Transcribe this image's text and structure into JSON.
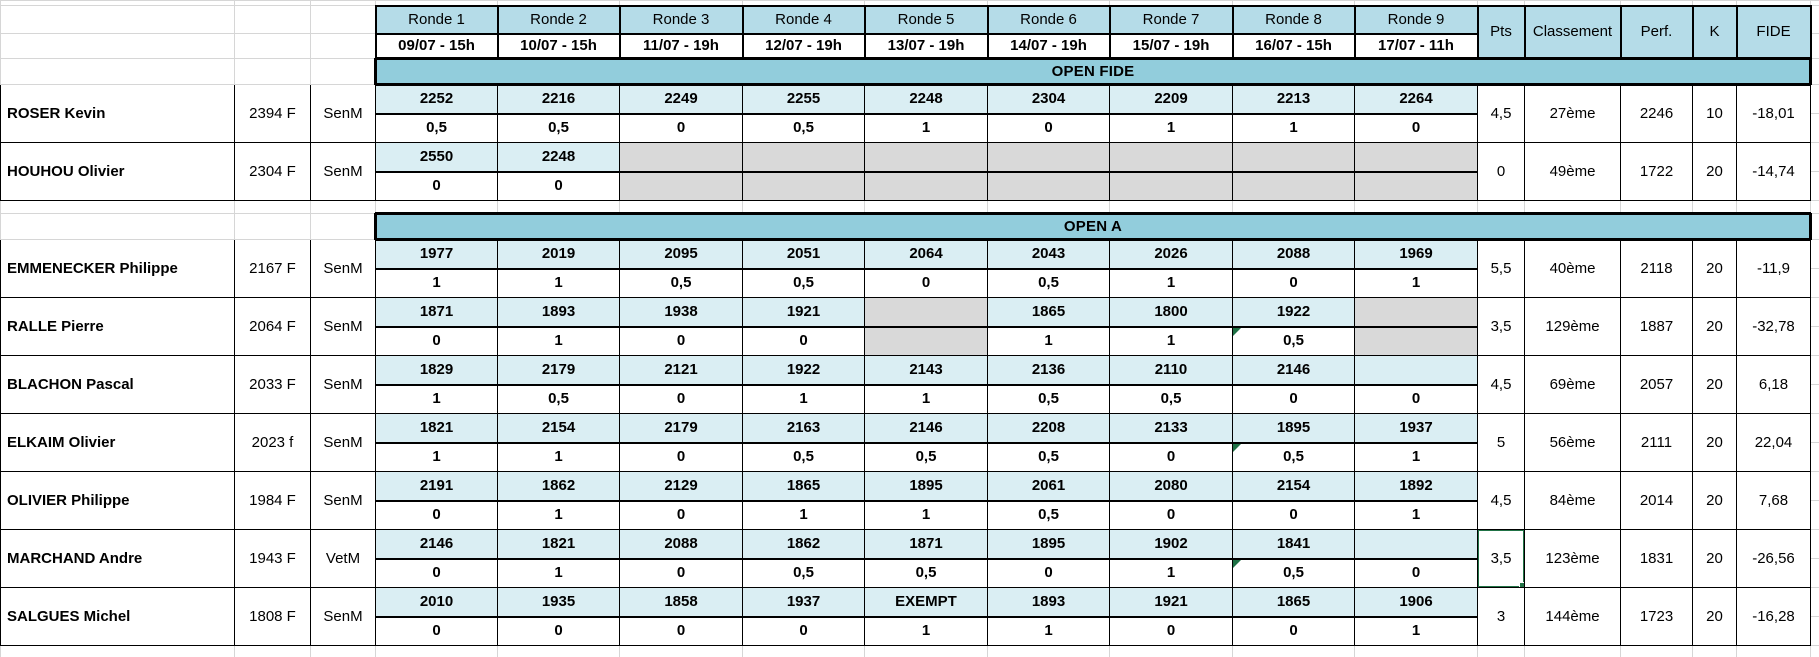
{
  "colors": {
    "header_fill": "#b5dce8",
    "band_fill": "#92cddc",
    "opponent_fill": "#daeef3",
    "skipped_fill": "#d9d9d9",
    "selection_green": "#217346",
    "flag_green": "#1e7145",
    "gridline": "#d6d6d6"
  },
  "header": {
    "pts_label": "Pts",
    "classement_label": "Classement",
    "perf_label": "Perf.",
    "k_label": "K",
    "fide_label": "FIDE",
    "rounds": [
      {
        "label": "Ronde 1",
        "date": "09/07 - 15h"
      },
      {
        "label": "Ronde 2",
        "date": "10/07 - 15h"
      },
      {
        "label": "Ronde 3",
        "date": "11/07 - 19h"
      },
      {
        "label": "Ronde 4",
        "date": "12/07 - 19h"
      },
      {
        "label": "Ronde 5",
        "date": "13/07 - 19h"
      },
      {
        "label": "Ronde 6",
        "date": "14/07 - 19h"
      },
      {
        "label": "Ronde 7",
        "date": "15/07 - 19h"
      },
      {
        "label": "Ronde 8",
        "date": "16/07 - 15h"
      },
      {
        "label": "Ronde 9",
        "date": "17/07 - 11h"
      }
    ]
  },
  "sections": [
    {
      "title": "OPEN FIDE",
      "players": [
        {
          "name": "ROSER Kevin",
          "rating": "2394 F",
          "category": "SenM",
          "rounds": [
            {
              "opp": "2252",
              "res": "0,5"
            },
            {
              "opp": "2216",
              "res": "0,5"
            },
            {
              "opp": "2249",
              "res": "0"
            },
            {
              "opp": "2255",
              "res": "0,5"
            },
            {
              "opp": "2248",
              "res": "1"
            },
            {
              "opp": "2304",
              "res": "0"
            },
            {
              "opp": "2209",
              "res": "1"
            },
            {
              "opp": "2213",
              "res": "1"
            },
            {
              "opp": "2264",
              "res": "0"
            }
          ],
          "pts": "4,5",
          "classement": "27ème",
          "perf": "2246",
          "k": "10",
          "fide": "-18,01"
        },
        {
          "name": "HOUHOU Olivier",
          "rating": "2304 F",
          "category": "SenM",
          "rounds": [
            {
              "opp": "2550",
              "res": "0"
            },
            {
              "opp": "2248",
              "res": "0"
            },
            {
              "gray": true
            },
            {
              "gray": true
            },
            {
              "gray": true
            },
            {
              "gray": true
            },
            {
              "gray": true
            },
            {
              "gray": true
            },
            {
              "gray": true
            }
          ],
          "pts": "0",
          "classement": "49ème",
          "perf": "1722",
          "k": "20",
          "fide": "-14,74"
        }
      ]
    },
    {
      "title": "OPEN A",
      "players": [
        {
          "name": "EMMENECKER Philippe",
          "rating": "2167 F",
          "category": "SenM",
          "rounds": [
            {
              "opp": "1977",
              "res": "1"
            },
            {
              "opp": "2019",
              "res": "1"
            },
            {
              "opp": "2095",
              "res": "0,5"
            },
            {
              "opp": "2051",
              "res": "0,5"
            },
            {
              "opp": "2064",
              "res": "0"
            },
            {
              "opp": "2043",
              "res": "0,5"
            },
            {
              "opp": "2026",
              "res": "1"
            },
            {
              "opp": "2088",
              "res": "0"
            },
            {
              "opp": "1969",
              "res": "1"
            }
          ],
          "pts": "5,5",
          "classement": "40ème",
          "perf": "2118",
          "k": "20",
          "fide": "-11,9"
        },
        {
          "name": "RALLE Pierre",
          "rating": "2064 F",
          "category": "SenM",
          "rounds": [
            {
              "opp": "1871",
              "res": "0"
            },
            {
              "opp": "1893",
              "res": "1"
            },
            {
              "opp": "1938",
              "res": "0"
            },
            {
              "opp": "1921",
              "res": "0"
            },
            {
              "gray": true
            },
            {
              "opp": "1865",
              "res": "1"
            },
            {
              "opp": "1800",
              "res": "1"
            },
            {
              "opp": "1922",
              "res": "0,5",
              "flag": true
            },
            {
              "gray": true
            }
          ],
          "pts": "3,5",
          "classement": "129ème",
          "perf": "1887",
          "k": "20",
          "fide": "-32,78"
        },
        {
          "name": "BLACHON Pascal",
          "rating": "2033 F",
          "category": "SenM",
          "rounds": [
            {
              "opp": "1829",
              "res": "1"
            },
            {
              "opp": "2179",
              "res": "0,5"
            },
            {
              "opp": "2121",
              "res": "0"
            },
            {
              "opp": "1922",
              "res": "1"
            },
            {
              "opp": "2143",
              "res": "1"
            },
            {
              "opp": "2136",
              "res": "0,5"
            },
            {
              "opp": "2110",
              "res": "0,5"
            },
            {
              "opp": "2146",
              "res": "0"
            },
            {
              "opp": "",
              "res": "0"
            }
          ],
          "pts": "4,5",
          "classement": "69ème",
          "perf": "2057",
          "k": "20",
          "fide": "6,18"
        },
        {
          "name": "ELKAIM Olivier",
          "rating": "2023 f",
          "category": "SenM",
          "rounds": [
            {
              "opp": "1821",
              "res": "1"
            },
            {
              "opp": "2154",
              "res": "1"
            },
            {
              "opp": "2179",
              "res": "0"
            },
            {
              "opp": "2163",
              "res": "0,5"
            },
            {
              "opp": "2146",
              "res": "0,5"
            },
            {
              "opp": "2208",
              "res": "0,5"
            },
            {
              "opp": "2133",
              "res": "0"
            },
            {
              "opp": "1895",
              "res": "0,5",
              "flag": true
            },
            {
              "opp": "1937",
              "res": "1"
            }
          ],
          "pts": "5",
          "classement": "56ème",
          "perf": "2111",
          "k": "20",
          "fide": "22,04"
        },
        {
          "name": "OLIVIER Philippe",
          "rating": "1984 F",
          "category": "SenM",
          "rounds": [
            {
              "opp": "2191",
              "res": "0"
            },
            {
              "opp": "1862",
              "res": "1"
            },
            {
              "opp": "2129",
              "res": "0"
            },
            {
              "opp": "1865",
              "res": "1"
            },
            {
              "opp": "1895",
              "res": "1"
            },
            {
              "opp": "2061",
              "res": "0,5"
            },
            {
              "opp": "2080",
              "res": "0"
            },
            {
              "opp": "2154",
              "res": "0"
            },
            {
              "opp": "1892",
              "res": "1"
            }
          ],
          "pts": "4,5",
          "classement": "84ème",
          "perf": "2014",
          "k": "20",
          "fide": "7,68"
        },
        {
          "name": "MARCHAND Andre",
          "rating": "1943 F",
          "category": "VetM",
          "rounds": [
            {
              "opp": "2146",
              "res": "0"
            },
            {
              "opp": "1821",
              "res": "1"
            },
            {
              "opp": "2088",
              "res": "0"
            },
            {
              "opp": "1862",
              "res": "0,5"
            },
            {
              "opp": "1871",
              "res": "0,5"
            },
            {
              "opp": "1895",
              "res": "0"
            },
            {
              "opp": "1902",
              "res": "1"
            },
            {
              "opp": "1841",
              "res": "0,5",
              "flag": true
            },
            {
              "opp": "",
              "res": "0"
            }
          ],
          "pts": "3,5",
          "pts_selected": true,
          "classement": "123ème",
          "perf": "1831",
          "k": "20",
          "fide": "-26,56"
        },
        {
          "name": "SALGUES Michel",
          "rating": "1808 F",
          "category": "SenM",
          "rounds": [
            {
              "opp": "2010",
              "res": "0"
            },
            {
              "opp": "1935",
              "res": "0"
            },
            {
              "opp": "1858",
              "res": "0"
            },
            {
              "opp": "1937",
              "res": "0"
            },
            {
              "opp": "EXEMPT",
              "res": "1"
            },
            {
              "opp": "1893",
              "res": "1"
            },
            {
              "opp": "1921",
              "res": "0"
            },
            {
              "opp": "1865",
              "res": "0"
            },
            {
              "opp": "1906",
              "res": "1"
            }
          ],
          "pts": "3",
          "classement": "144ème",
          "perf": "1723",
          "k": "20",
          "fide": "-16,28"
        }
      ]
    }
  ]
}
